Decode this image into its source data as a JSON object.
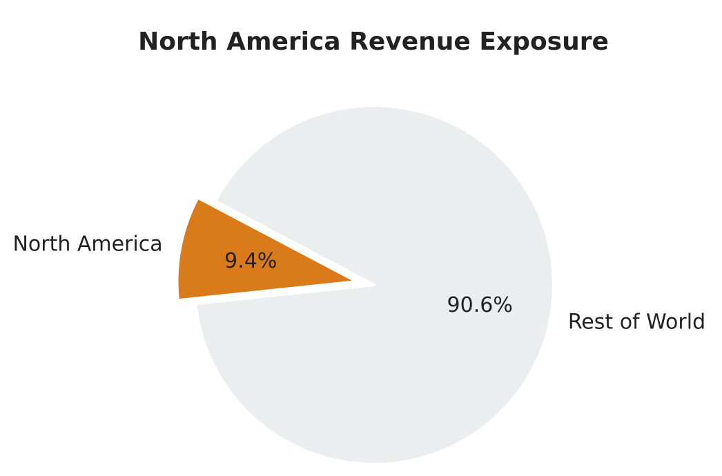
{
  "chart_data": {
    "type": "pie",
    "title": "North America Revenue Exposure",
    "slices": [
      {
        "label": "North America",
        "value": 9.4,
        "pct_label": "9.4%",
        "color": "#d97b1a",
        "exploded": true
      },
      {
        "label": "Rest of World",
        "value": 90.6,
        "pct_label": "90.6%",
        "color": "#ebeeef",
        "exploded": false
      }
    ],
    "legend": "none"
  }
}
